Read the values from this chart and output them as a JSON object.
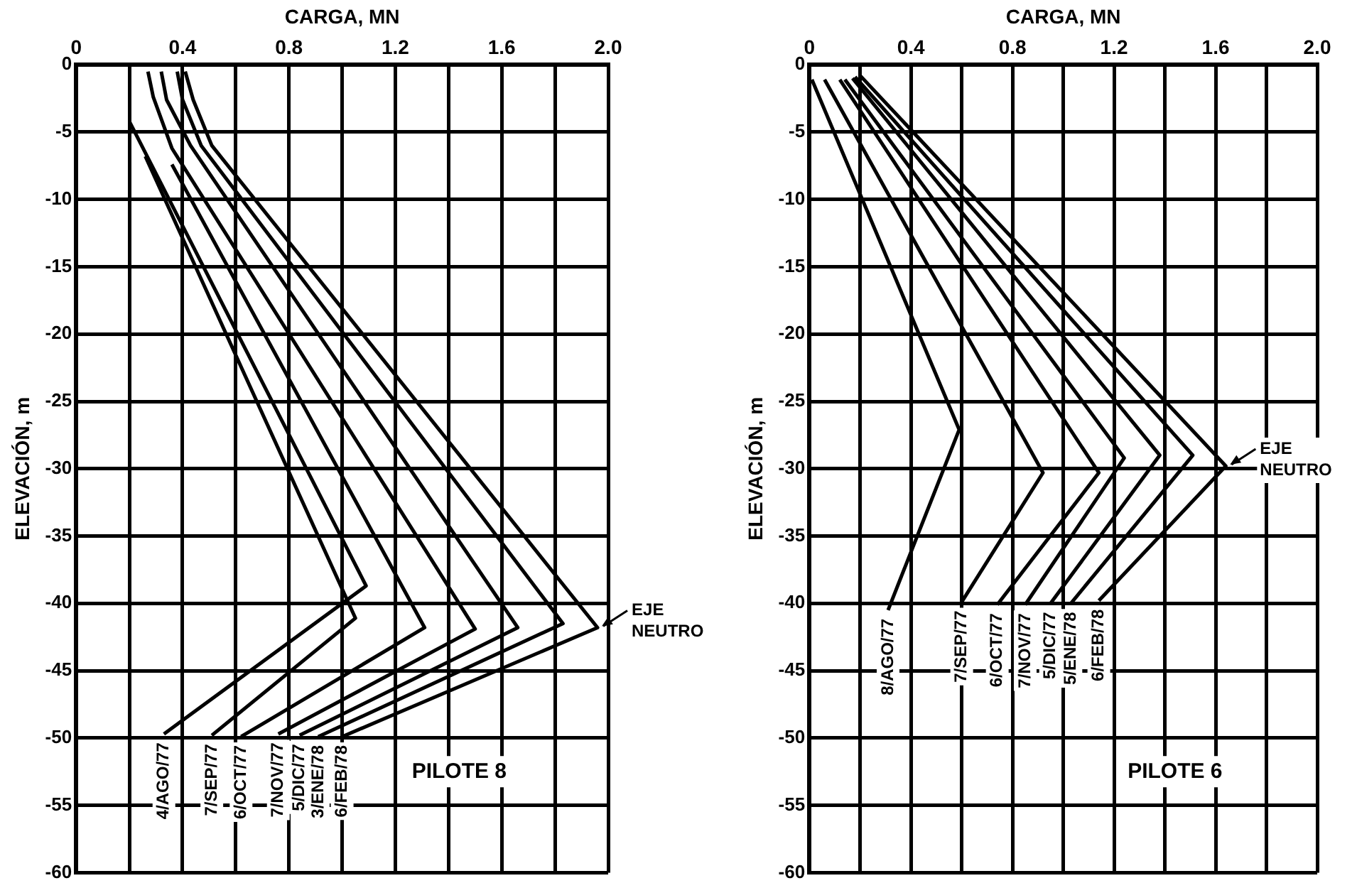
{
  "chart_data": [
    {
      "type": "line",
      "xlabel": "CARGA, MN",
      "ylabel": "ELEVACIÓN, m",
      "xlim": [
        0,
        2
      ],
      "ylim": [
        -60,
        0
      ],
      "xticks": [
        0,
        {
          "value": 0.2,
          "label": null
        },
        0.4,
        {
          "value": 0.6,
          "label": null
        },
        0.8,
        {
          "value": 1.0,
          "label": null
        },
        1.2,
        {
          "value": 1.4,
          "label": null
        },
        1.6,
        {
          "value": 1.8,
          "label": null
        },
        {
          "value": 2,
          "label": "2.0"
        }
      ],
      "yticks": [
        0,
        -5,
        -10,
        -15,
        -20,
        -25,
        -30,
        -35,
        -40,
        -45,
        -50,
        -55,
        -60
      ],
      "grid": true,
      "series": [
        {
          "name": "4/AGO/77",
          "color": "#000000",
          "x": [
            0.2,
            1.09,
            0.33
          ],
          "values": [
            -4.2,
            -38.7,
            -49.7
          ]
        },
        {
          "name": "7/SEP/77",
          "color": "#000000",
          "x": [
            0.26,
            1.05,
            0.51
          ],
          "values": [
            -6.8,
            -41.1,
            -49.8
          ]
        },
        {
          "name": "6/OCT/77",
          "color": "#000000",
          "x": [
            0.36,
            1.31,
            0.62
          ],
          "values": [
            -7.4,
            -41.8,
            -49.9
          ]
        },
        {
          "name": "7/NOV/77",
          "color": "#000000",
          "x": [
            0.27,
            0.29,
            0.36,
            1.5,
            0.76
          ],
          "values": [
            -0.5,
            -2.4,
            -6.2,
            -41.9,
            -49.7
          ]
        },
        {
          "name": "5/DIC/77",
          "color": "#000000",
          "x": [
            0.32,
            0.34,
            0.43,
            1.66,
            0.84
          ],
          "values": [
            -0.5,
            -2.6,
            -6.0,
            -41.8,
            -49.8
          ]
        },
        {
          "name": "3/ENE/78",
          "color": "#000000",
          "x": [
            0.38,
            0.4,
            0.47,
            1.83,
            0.91
          ],
          "values": [
            -0.5,
            -2.6,
            -6.0,
            -41.5,
            -49.9
          ]
        },
        {
          "name": "6/FEB/78",
          "color": "#000000",
          "x": [
            0.41,
            0.44,
            0.51,
            1.96,
            1.0
          ],
          "values": [
            -0.5,
            -2.6,
            -6.0,
            -41.8,
            -49.9
          ]
        }
      ],
      "annotations": [
        "PILOTE 8",
        {
          "text": "EJE NEUTRO",
          "x": 1.96,
          "y": -41.8
        }
      ]
    },
    {
      "type": "line",
      "xlabel": "CARGA, MN",
      "ylabel": "ELEVACIÓN, m",
      "xlim": [
        0,
        2
      ],
      "ylim": [
        -60,
        0
      ],
      "xticks": [
        0,
        {
          "value": 0.2,
          "label": null
        },
        0.4,
        {
          "value": 0.6,
          "label": null
        },
        0.8,
        {
          "value": 1.0,
          "label": null
        },
        1.2,
        {
          "value": 1.4,
          "label": null
        },
        1.6,
        {
          "value": 1.8,
          "label": null
        },
        {
          "value": 2,
          "label": "2.0"
        }
      ],
      "yticks": [
        0,
        -5,
        -10,
        -15,
        -20,
        -25,
        -30,
        -35,
        -40,
        -45,
        -50,
        -55,
        -60
      ],
      "grid": true,
      "series": [
        {
          "name": "8/AGO/77",
          "color": "#000000",
          "x": [
            0.01,
            0.59,
            0.31
          ],
          "values": [
            -1.1,
            -27.1,
            -40.5
          ]
        },
        {
          "name": "7/SEP/77",
          "color": "#000000",
          "x": [
            0.06,
            0.92,
            0.6
          ],
          "values": [
            -1.1,
            -30.3,
            -39.9
          ]
        },
        {
          "name": "6/OCT/77",
          "color": "#000000",
          "x": [
            0.12,
            1.14,
            0.74
          ],
          "values": [
            -1.1,
            -30.3,
            -40.1
          ]
        },
        {
          "name": "7/NOV/77",
          "color": "#000000",
          "x": [
            0.14,
            1.24,
            0.85
          ],
          "values": [
            -1.1,
            -29.2,
            -40.1
          ]
        },
        {
          "name": "5/DIC/77",
          "color": "#000000",
          "x": [
            0.17,
            1.38,
            0.95
          ],
          "values": [
            -1.0,
            -29.0,
            -40.0
          ]
        },
        {
          "name": "5/ENE/78",
          "color": "#000000",
          "x": [
            0.18,
            1.51,
            1.03
          ],
          "values": [
            -0.9,
            -29.0,
            -40.0
          ]
        },
        {
          "name": "6/FEB/78",
          "color": "#000000",
          "x": [
            0.2,
            1.64,
            1.14
          ],
          "values": [
            -0.8,
            -29.8,
            -39.8
          ]
        }
      ],
      "annotations": [
        "PILOTE 6",
        {
          "text": "EJE NEUTRO",
          "x": 1.64,
          "y": -29.8
        }
      ]
    }
  ]
}
